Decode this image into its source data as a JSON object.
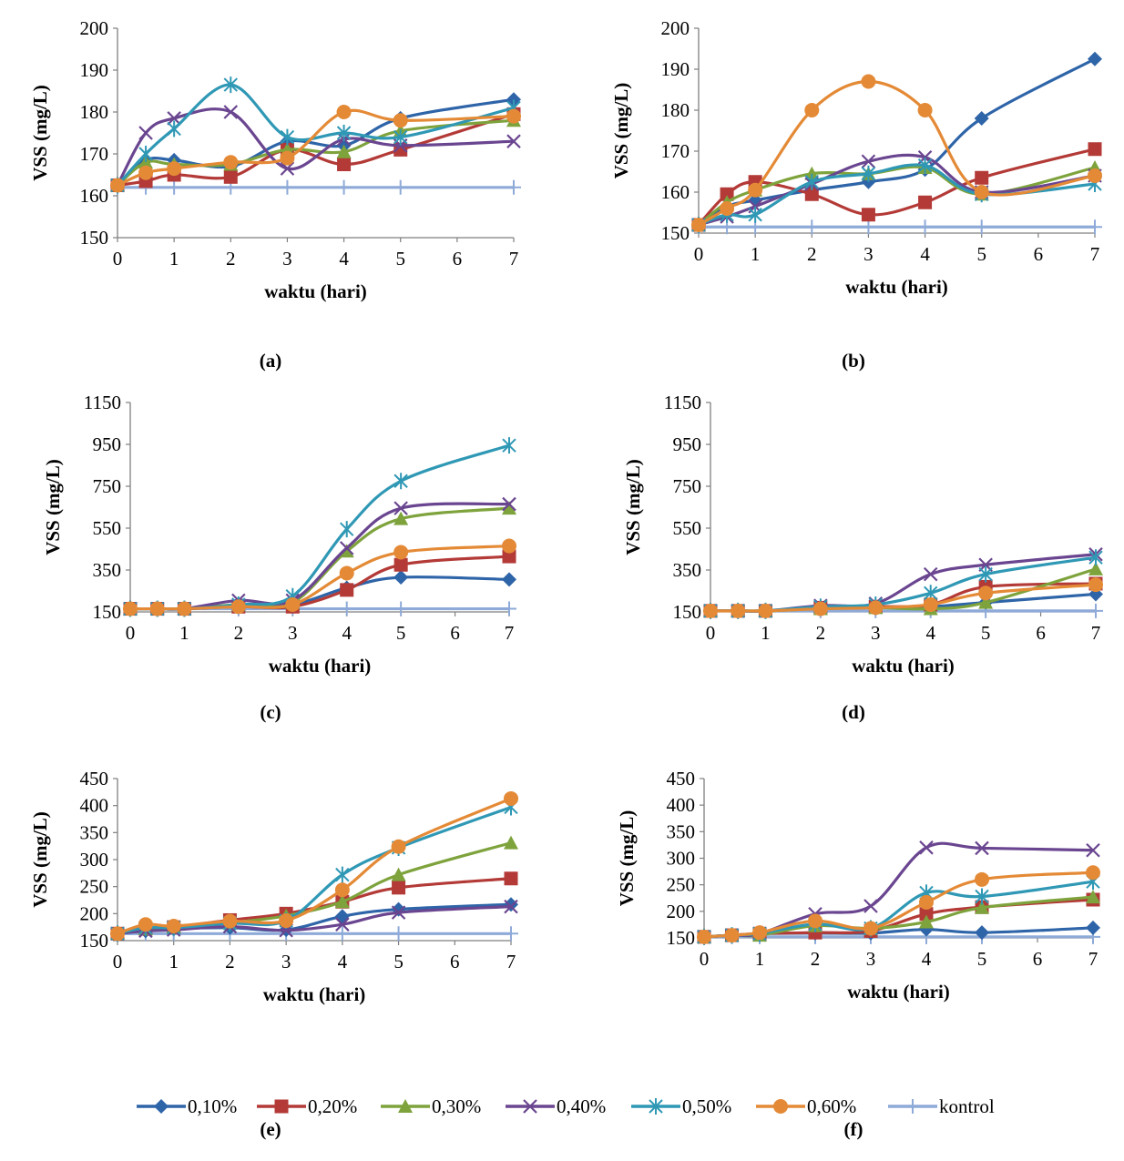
{
  "chart_data": [
    {
      "type": "line",
      "panel_label": "(a)",
      "xlabel": "waktu (hari)",
      "ylabel": "VSS (mg/L)",
      "ylim": [
        150,
        200
      ],
      "yticks": [
        150,
        160,
        170,
        180,
        190,
        200
      ],
      "xlim": [
        0,
        7
      ],
      "xticks": [
        0,
        1,
        2,
        3,
        4,
        5,
        6,
        7
      ],
      "x": [
        0,
        0.5,
        1,
        2,
        3,
        4,
        5,
        7
      ],
      "series": [
        {
          "name": "0,10%",
          "values": [
            162.5,
            168.5,
            168.5,
            167,
            173,
            172,
            178.5,
            183
          ]
        },
        {
          "name": "0,20%",
          "values": [
            162.5,
            163.5,
            165,
            164.5,
            171,
            167.5,
            171,
            179.5
          ]
        },
        {
          "name": "0,30%",
          "values": [
            162.5,
            168,
            167.5,
            167.5,
            171,
            170.5,
            175.5,
            178
          ]
        },
        {
          "name": "0,40%",
          "values": [
            162.5,
            175,
            178.5,
            180,
            166.5,
            173.5,
            172,
            173
          ]
        },
        {
          "name": "0,50%",
          "values": [
            162.5,
            170,
            176,
            186.5,
            174,
            175,
            174,
            181
          ]
        },
        {
          "name": "0,60%",
          "values": [
            162.5,
            165.5,
            166.5,
            168,
            169,
            180,
            178,
            179
          ]
        },
        {
          "name": "kontrol",
          "values": [
            162,
            162,
            162,
            162,
            162,
            162,
            162,
            162
          ]
        }
      ]
    },
    {
      "type": "line",
      "panel_label": "(b)",
      "xlabel": "waktu (hari)",
      "ylabel": "VSS (mg/L)",
      "ylim": [
        150,
        200
      ],
      "yticks": [
        150,
        160,
        170,
        180,
        190,
        200
      ],
      "xlim": [
        0,
        7
      ],
      "xticks": [
        0,
        1,
        2,
        3,
        4,
        5,
        6,
        7
      ],
      "x": [
        0,
        0.5,
        1,
        2,
        3,
        4,
        5,
        7
      ],
      "series": [
        {
          "name": "0,10%",
          "values": [
            152,
            156.5,
            158,
            160.5,
            162.5,
            165.5,
            178,
            192.5
          ]
        },
        {
          "name": "0,20%",
          "values": [
            152,
            159.5,
            162.5,
            159.5,
            154.5,
            157.5,
            163.5,
            170.5
          ]
        },
        {
          "name": "0,30%",
          "values": [
            152,
            157.5,
            160.5,
            164.5,
            164.5,
            166,
            159.5,
            166
          ]
        },
        {
          "name": "0,40%",
          "values": [
            152,
            154,
            156.5,
            162,
            167.5,
            168.5,
            160,
            164
          ]
        },
        {
          "name": "0,50%",
          "values": [
            152,
            154.5,
            154.5,
            162.5,
            164.5,
            166.5,
            159.5,
            162
          ]
        },
        {
          "name": "0,60%",
          "values": [
            152,
            156,
            160.5,
            180,
            187,
            180,
            160,
            164
          ]
        },
        {
          "name": "kontrol",
          "values": [
            151.5,
            151.5,
            151.5,
            151.5,
            151.5,
            151.5,
            151.5,
            151.5
          ]
        }
      ]
    },
    {
      "type": "line",
      "panel_label": "(c)",
      "xlabel": "waktu (hari)",
      "ylabel": "VSS (mg/L)",
      "ylim": [
        150,
        1150
      ],
      "yticks": [
        150,
        350,
        550,
        750,
        950,
        1150
      ],
      "xlim": [
        0,
        7
      ],
      "xticks": [
        0,
        1,
        2,
        3,
        4,
        5,
        6,
        7
      ],
      "x": [
        0,
        0.5,
        1,
        2,
        3,
        4,
        5,
        7
      ],
      "series": [
        {
          "name": "0,10%",
          "values": [
            165,
            165,
            165,
            180,
            185,
            265,
            315,
            305
          ]
        },
        {
          "name": "0,20%",
          "values": [
            165,
            165,
            165,
            175,
            175,
            255,
            375,
            415
          ]
        },
        {
          "name": "0,30%",
          "values": [
            165,
            165,
            165,
            185,
            195,
            440,
            595,
            645
          ]
        },
        {
          "name": "0,40%",
          "values": [
            165,
            165,
            165,
            205,
            205,
            455,
            645,
            665
          ]
        },
        {
          "name": "0,50%",
          "values": [
            165,
            165,
            165,
            185,
            225,
            545,
            775,
            945
          ]
        },
        {
          "name": "0,60%",
          "values": [
            165,
            165,
            165,
            175,
            185,
            335,
            435,
            465
          ]
        },
        {
          "name": "kontrol",
          "values": [
            165,
            165,
            165,
            165,
            165,
            165,
            165,
            165
          ]
        }
      ]
    },
    {
      "type": "line",
      "panel_label": "(d)",
      "xlabel": "waktu (hari)",
      "ylabel": "VSS (mg/L)",
      "ylim": [
        150,
        1150
      ],
      "yticks": [
        150,
        350,
        550,
        750,
        950,
        1150
      ],
      "xlim": [
        0,
        7
      ],
      "xticks": [
        0,
        1,
        2,
        3,
        4,
        5,
        6,
        7
      ],
      "x": [
        0,
        0.5,
        1,
        2,
        3,
        4,
        5,
        7
      ],
      "series": [
        {
          "name": "0,10%",
          "values": [
            155,
            155,
            155,
            170,
            170,
            175,
            195,
            235
          ]
        },
        {
          "name": "0,20%",
          "values": [
            155,
            155,
            155,
            170,
            175,
            185,
            270,
            285
          ]
        },
        {
          "name": "0,30%",
          "values": [
            155,
            155,
            155,
            165,
            170,
            165,
            195,
            355
          ]
        },
        {
          "name": "0,40%",
          "values": [
            155,
            155,
            155,
            180,
            190,
            330,
            375,
            425
          ]
        },
        {
          "name": "0,50%",
          "values": [
            155,
            155,
            155,
            175,
            185,
            240,
            330,
            410
          ]
        },
        {
          "name": "0,60%",
          "values": [
            155,
            155,
            155,
            165,
            170,
            185,
            240,
            280
          ]
        },
        {
          "name": "kontrol",
          "values": [
            155,
            155,
            155,
            155,
            155,
            155,
            155,
            155
          ]
        }
      ]
    },
    {
      "type": "line",
      "panel_label": "(e)",
      "xlabel": "waktu (hari)",
      "ylabel": "VSS (mg/L)",
      "ylim": [
        150,
        450
      ],
      "yticks": [
        150,
        200,
        250,
        300,
        350,
        400,
        450
      ],
      "xlim": [
        0,
        7
      ],
      "xticks": [
        0,
        1,
        2,
        3,
        4,
        5,
        6,
        7
      ],
      "x": [
        0,
        0.5,
        1,
        2,
        3,
        4,
        5,
        7
      ],
      "series": [
        {
          "name": "0,10%",
          "values": [
            163,
            168,
            172,
            174,
            170,
            195,
            208,
            217
          ]
        },
        {
          "name": "0,20%",
          "values": [
            163,
            172,
            175,
            188,
            200,
            222,
            248,
            265
          ]
        },
        {
          "name": "0,30%",
          "values": [
            163,
            172,
            176,
            183,
            196,
            222,
            272,
            331
          ]
        },
        {
          "name": "0,40%",
          "values": [
            163,
            168,
            170,
            176,
            169,
            180,
            202,
            213
          ]
        },
        {
          "name": "0,50%",
          "values": [
            163,
            174,
            174,
            182,
            187,
            272,
            322,
            397
          ]
        },
        {
          "name": "0,60%",
          "values": [
            163,
            180,
            177,
            186,
            187,
            244,
            324,
            413
          ]
        },
        {
          "name": "kontrol",
          "values": [
            163,
            163,
            163,
            163,
            163,
            163,
            163,
            163
          ]
        }
      ]
    },
    {
      "type": "line",
      "panel_label": "(f)",
      "xlabel": "waktu (hari)",
      "ylabel": "VSS (mg/L)",
      "ylim": [
        150,
        450
      ],
      "yticks": [
        150,
        200,
        250,
        300,
        350,
        400,
        450
      ],
      "xlim": [
        0,
        7
      ],
      "xticks": [
        0,
        1,
        2,
        3,
        4,
        5,
        6,
        7
      ],
      "x": [
        0,
        0.5,
        1,
        2,
        3,
        4,
        5,
        7
      ],
      "series": [
        {
          "name": "0,10%",
          "values": [
            152,
            155,
            158,
            159,
            159,
            166,
            160,
            169
          ]
        },
        {
          "name": "0,20%",
          "values": [
            152,
            155,
            158,
            160,
            163,
            195,
            208,
            222
          ]
        },
        {
          "name": "0,30%",
          "values": [
            152,
            155,
            155,
            173,
            168,
            180,
            207,
            227
          ]
        },
        {
          "name": "0,40%",
          "values": [
            152,
            155,
            158,
            195,
            210,
            320,
            319,
            315
          ]
        },
        {
          "name": "0,50%",
          "values": [
            152,
            155,
            158,
            176,
            168,
            235,
            228,
            256
          ]
        },
        {
          "name": "0,60%",
          "values": [
            152,
            155,
            160,
            182,
            168,
            217,
            260,
            273
          ]
        },
        {
          "name": "kontrol",
          "values": [
            152,
            152,
            152,
            152,
            152,
            152,
            152,
            152
          ]
        }
      ]
    }
  ],
  "series_styles": [
    {
      "name": "0,10%",
      "color": "#2e64a8",
      "marker": "diamond-icon"
    },
    {
      "name": "0,20%",
      "color": "#b33a37",
      "marker": "square-icon"
    },
    {
      "name": "0,30%",
      "color": "#7ea33c",
      "marker": "triangle-icon"
    },
    {
      "name": "0,40%",
      "color": "#6a4590",
      "marker": "x-icon"
    },
    {
      "name": "0,50%",
      "color": "#2f98b5",
      "marker": "asterisk-icon"
    },
    {
      "name": "0,60%",
      "color": "#e48a36",
      "marker": "circle-icon"
    },
    {
      "name": "kontrol",
      "color": "#8eaad8",
      "marker": "plus-icon"
    }
  ],
  "legend": {
    "placement": "bottom",
    "items": [
      "0,10%",
      "0,20%",
      "0,30%",
      "0,40%",
      "0,50%",
      "0,60%",
      "kontrol"
    ]
  }
}
